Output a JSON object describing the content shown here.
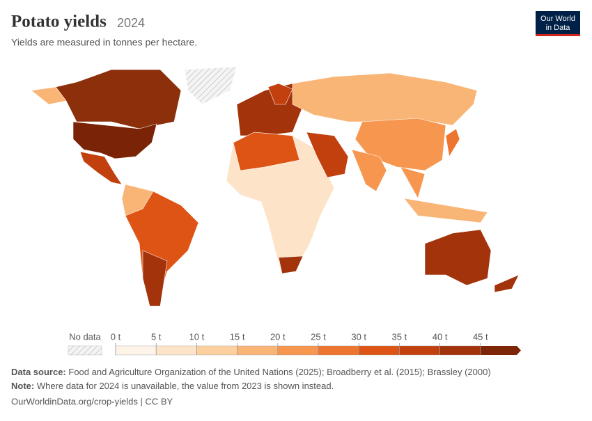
{
  "header": {
    "title": "Potato yields",
    "year": "2024",
    "subtitle": "Yields are measured in tonnes per hectare.",
    "logo": [
      "Our World",
      "in Data"
    ]
  },
  "legend": {
    "no_data": "No data",
    "lim": [
      0,
      50
    ],
    "ticks": [
      {
        "value": 0,
        "label": "0 t"
      },
      {
        "value": 5,
        "label": "5 t"
      },
      {
        "value": 10,
        "label": "10 t"
      },
      {
        "value": 15,
        "label": "15 t"
      },
      {
        "value": 20,
        "label": "20 t"
      },
      {
        "value": 25,
        "label": "25 t"
      },
      {
        "value": 30,
        "label": "30 t"
      },
      {
        "value": 35,
        "label": "35 t"
      },
      {
        "value": 40,
        "label": "40 t"
      },
      {
        "value": 45,
        "label": "45 t"
      }
    ],
    "colors": [
      "#fef3e8",
      "#fde3c8",
      "#fccf9f",
      "#f9b576",
      "#f6964f",
      "#ee7530",
      "#dd5414",
      "#c2400d",
      "#a2330b",
      "#7d2607"
    ]
  },
  "footer": {
    "source_label": "Data source:",
    "source": "Food and Agriculture Organization of the United Nations (2025); Broadberry et al. (2015); Brassley (2000)",
    "note_label": "Note:",
    "note": "Where data for 2024 is unavailable, the value from 2023 is shown instead.",
    "url": "OurWorldinData.org/crop-yields | CC BY"
  }
}
